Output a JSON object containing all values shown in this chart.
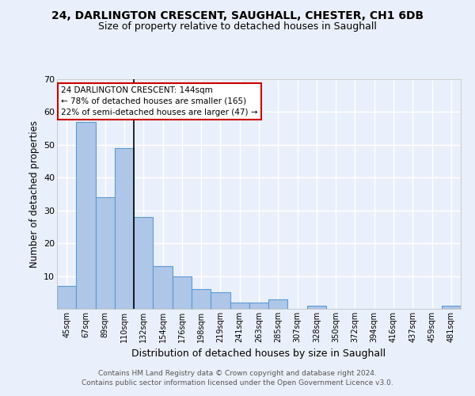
{
  "title1": "24, DARLINGTON CRESCENT, SAUGHALL, CHESTER, CH1 6DB",
  "title2": "Size of property relative to detached houses in Saughall",
  "xlabel": "Distribution of detached houses by size in Saughall",
  "ylabel": "Number of detached properties",
  "categories": [
    "45sqm",
    "67sqm",
    "89sqm",
    "110sqm",
    "132sqm",
    "154sqm",
    "176sqm",
    "198sqm",
    "219sqm",
    "241sqm",
    "263sqm",
    "285sqm",
    "307sqm",
    "328sqm",
    "350sqm",
    "372sqm",
    "394sqm",
    "416sqm",
    "437sqm",
    "459sqm",
    "481sqm"
  ],
  "values": [
    7,
    57,
    34,
    49,
    28,
    13,
    10,
    6,
    5,
    2,
    2,
    3,
    0,
    1,
    0,
    0,
    0,
    0,
    0,
    0,
    1
  ],
  "bar_color": "#aec6e8",
  "bar_edge_color": "#5b9bd5",
  "highlight_index": 4,
  "highlight_line_color": "#000000",
  "ylim": [
    0,
    70
  ],
  "yticks": [
    0,
    10,
    20,
    30,
    40,
    50,
    60,
    70
  ],
  "annotation_text": "24 DARLINGTON CRESCENT: 144sqm\n← 78% of detached houses are smaller (165)\n22% of semi-detached houses are larger (47) →",
  "annotation_box_color": "#ffffff",
  "annotation_box_edge": "#cc0000",
  "footer": "Contains HM Land Registry data © Crown copyright and database right 2024.\nContains public sector information licensed under the Open Government Licence v3.0.",
  "background_color": "#eaf0fb",
  "plot_background": "#eaf0fb",
  "grid_color": "#ffffff",
  "title1_fontsize": 10,
  "title2_fontsize": 9
}
